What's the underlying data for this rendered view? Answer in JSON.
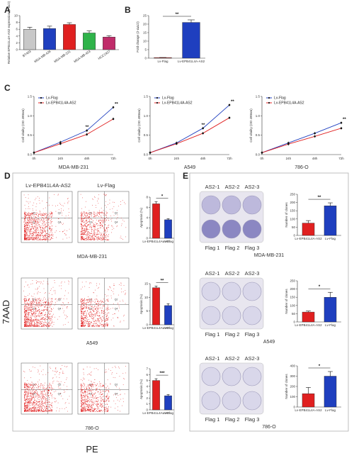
{
  "panels": {
    "A": {
      "letter": "A",
      "chart_data": {
        "type": "bar",
        "ylabel": "Relative EPB41L4A-AS2 expression (2-ΔCt)",
        "categories": [
          "BT483",
          "MDA-MB-436",
          "MDA-MB-231",
          "MDA-MB-453",
          "HCC1937"
        ],
        "values": [
          6.0,
          6.2,
          7.4,
          4.9,
          3.7
        ],
        "errors": [
          0.6,
          0.7,
          0.5,
          0.6,
          0.4
        ],
        "colors": [
          "#c8c8c8",
          "#1f3fbf",
          "#e02020",
          "#2fb34a",
          "#c02c6a"
        ],
        "ylim": [
          0,
          10
        ],
        "yticks": [
          0,
          2,
          4,
          6,
          8,
          10
        ]
      }
    },
    "B": {
      "letter": "B",
      "chart_data": {
        "type": "bar",
        "ylabel": "Fold change (2-ΔΔCt)",
        "categories": [
          "Lv-Flag",
          "Lv-EPB41L4A-AS2"
        ],
        "values": [
          0.3,
          21
        ],
        "errors": [
          0.1,
          1.5
        ],
        "colors": [
          "#e02020",
          "#1f3fbf"
        ],
        "ylim": [
          0,
          25
        ],
        "yticks": [
          0,
          5,
          10,
          15,
          20,
          25
        ],
        "significance": "**"
      }
    },
    "C": {
      "letter": "C",
      "charts": [
        {
          "type": "line",
          "title": "MDA-MB-231",
          "ylabel": "Cell vitality (OD 490nm)",
          "x": [
            "0h",
            "24h",
            "48h",
            "72h"
          ],
          "ylim": [
            0,
            1.5
          ],
          "yticks": [
            "0.0",
            "0.5",
            "1.0",
            "1.5"
          ],
          "series": [
            {
              "name": "Lv-Flag",
              "color": "#1f3fbf",
              "values": [
                0.05,
                0.32,
                0.62,
                1.22
              ]
            },
            {
              "name": "Lv-EPB41L4A-AS2",
              "color": "#e02020",
              "values": [
                0.05,
                0.28,
                0.52,
                0.92
              ]
            }
          ],
          "significance": "**"
        },
        {
          "type": "line",
          "title": "A549",
          "ylabel": "Cell vitality (OD 490nm)",
          "x": [
            "0h",
            "24h",
            "48h",
            "72h"
          ],
          "ylim": [
            0,
            1.5
          ],
          "yticks": [
            "0.0",
            "0.5",
            "1.0",
            "1.5"
          ],
          "series": [
            {
              "name": "Lv-Flag",
              "color": "#1f3fbf",
              "values": [
                0.05,
                0.3,
                0.68,
                1.28
              ]
            },
            {
              "name": "Lv-EPB41L4A-AS2",
              "color": "#e02020",
              "values": [
                0.05,
                0.28,
                0.55,
                0.95
              ]
            }
          ],
          "significance": "**"
        },
        {
          "type": "line",
          "title": "786-O",
          "ylabel": "Cell vitality (OD 490nm)",
          "x": [
            "0h",
            "24h",
            "48h",
            "72h"
          ],
          "ylim": [
            0,
            1.5
          ],
          "yticks": [
            "0.0",
            "0.5",
            "1.0",
            "1.5"
          ],
          "series": [
            {
              "name": "Lv-Flag",
              "color": "#1f3fbf",
              "values": [
                0.05,
                0.3,
                0.55,
                0.82
              ]
            },
            {
              "name": "Lv-EPB41L4A-AS2",
              "color": "#e02020",
              "values": [
                0.05,
                0.27,
                0.47,
                0.68
              ]
            }
          ],
          "significance": "**"
        }
      ]
    },
    "D": {
      "letter": "D",
      "header_left": "Lv-EPB41L4A-AS2",
      "header_right": "Lv-Flag",
      "y_axis_label": "7AAD",
      "x_axis_label": "PE",
      "quadrants": [
        "Q1",
        "Q2",
        "Q3",
        "Q4"
      ],
      "rows": [
        {
          "cell": "MDA-MB-231",
          "chart_data": {
            "type": "bar",
            "ylabel": "Apoptosis (%)",
            "categories": [
              "Lv-EPB41L4A-AS2",
              "Lv-Flag"
            ],
            "values": [
              6.7,
              3.6
            ],
            "errors": [
              0.4,
              0.2
            ],
            "colors": [
              "#e02020",
              "#1f3fbf"
            ],
            "ylim": [
              0,
              8
            ],
            "yticks": [
              0,
              2,
              4,
              6,
              8
            ],
            "significance": "*"
          }
        },
        {
          "cell": "A549",
          "chart_data": {
            "type": "bar",
            "ylabel": "Apoptosis (%)",
            "categories": [
              "Lv-EPB41L4A-AS2",
              "Lv-Flag"
            ],
            "values": [
              13.5,
              7.0
            ],
            "errors": [
              0.6,
              0.7
            ],
            "colors": [
              "#e02020",
              "#1f3fbf"
            ],
            "ylim": [
              0,
              15
            ],
            "yticks": [
              0,
              5,
              10,
              15
            ],
            "significance": "**"
          }
        },
        {
          "cell": "786-O",
          "chart_data": {
            "type": "bar",
            "ylabel": "Apoptosis (%)",
            "categories": [
              "Lv-EPB41L4A-AS2",
              "Lv-Flag"
            ],
            "values": [
              5.0,
              2.4
            ],
            "errors": [
              0.3,
              0.2
            ],
            "colors": [
              "#e02020",
              "#1f3fbf"
            ],
            "ylim": [
              0,
              7
            ],
            "yticks": [
              0,
              1,
              2,
              3,
              4,
              5,
              6,
              7
            ],
            "significance": "***"
          }
        }
      ]
    },
    "E": {
      "letter": "E",
      "top_labels": [
        "AS2-1",
        "AS2-2",
        "AS2-3"
      ],
      "bottom_labels": [
        "Flag 1",
        "Flag 2",
        "Flag 3"
      ],
      "rows": [
        {
          "cell": "MDA-MB-231",
          "chart_data": {
            "type": "bar",
            "ylabel": "Number of clones",
            "categories": [
              "Lv-EPB41L4A-AS2",
              "Lv-Flag"
            ],
            "values": [
              75,
              180
            ],
            "errors": [
              15,
              18
            ],
            "colors": [
              "#e02020",
              "#1f3fbf"
            ],
            "ylim": [
              0,
              250
            ],
            "yticks": [
              0,
              50,
              100,
              150,
              200,
              250
            ],
            "significance": "**"
          }
        },
        {
          "cell": "A549",
          "chart_data": {
            "type": "bar",
            "ylabel": "Number of clones",
            "categories": [
              "Lv-EPB41L4A-AS2",
              "Lv-Flag"
            ],
            "values": [
              60,
              150
            ],
            "errors": [
              6,
              30
            ],
            "colors": [
              "#e02020",
              "#1f3fbf"
            ],
            "ylim": [
              0,
              250
            ],
            "yticks": [
              0,
              50,
              100,
              150,
              200,
              250
            ],
            "significance": "*"
          }
        },
        {
          "cell": "786-O",
          "chart_data": {
            "type": "bar",
            "ylabel": "Number of clones",
            "categories": [
              "Lv-EPB41L4A-AS2",
              "Lv-Flag"
            ],
            "values": [
              130,
              300
            ],
            "errors": [
              60,
              45
            ],
            "colors": [
              "#e02020",
              "#1f3fbf"
            ],
            "ylim": [
              0,
              400
            ],
            "yticks": [
              0,
              100,
              200,
              300,
              400
            ],
            "significance": "*"
          }
        }
      ]
    }
  }
}
